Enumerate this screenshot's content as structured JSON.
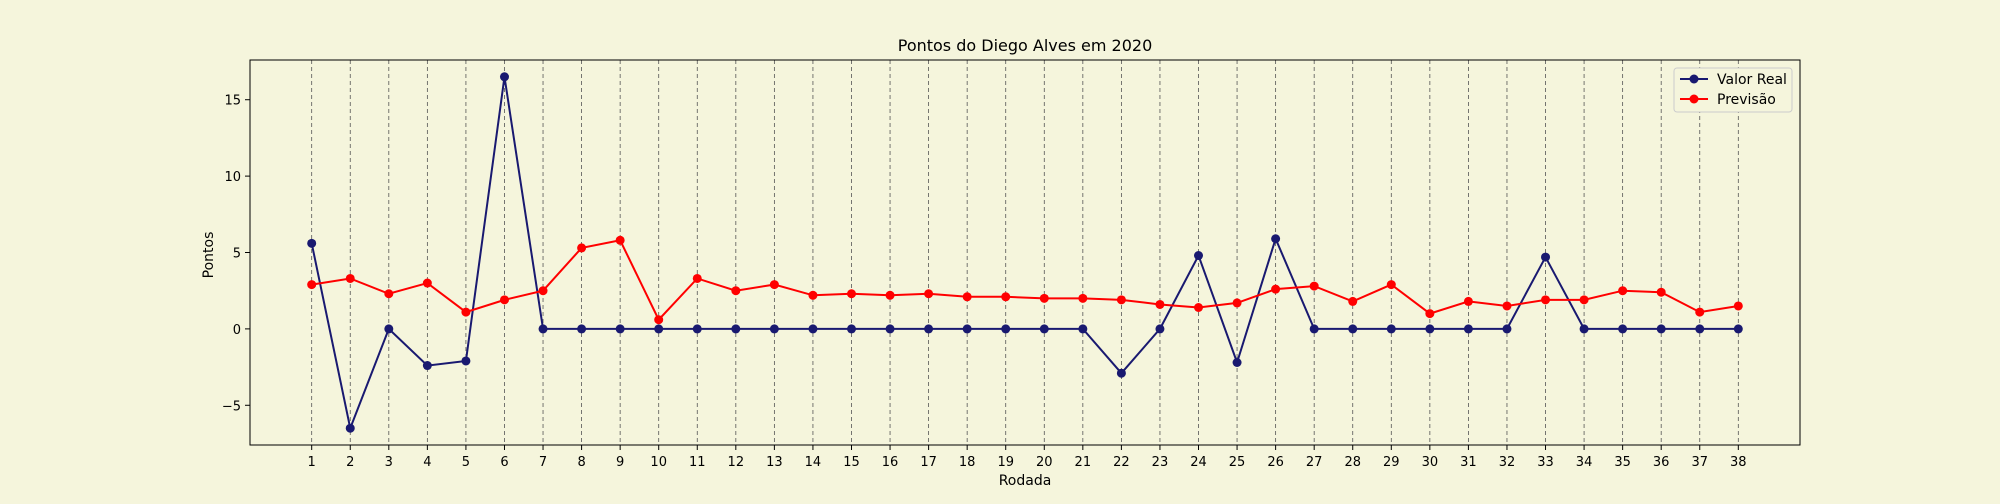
{
  "chart_data": {
    "type": "line",
    "title": "Pontos do Diego Alves em 2020",
    "xlabel": "Rodada",
    "ylabel": "Pontos",
    "x": [
      1,
      2,
      3,
      4,
      5,
      6,
      7,
      8,
      9,
      10,
      11,
      12,
      13,
      14,
      15,
      16,
      17,
      18,
      19,
      20,
      21,
      22,
      23,
      24,
      25,
      26,
      27,
      28,
      29,
      30,
      31,
      32,
      33,
      34,
      35,
      36,
      37,
      38
    ],
    "xlim": [
      -0.6,
      39.6
    ],
    "ylim": [
      -7.6,
      17.6
    ],
    "yticks": [
      -5,
      0,
      5,
      10,
      15
    ],
    "ytick_labels": [
      "−5",
      "0",
      "5",
      "10",
      "15"
    ],
    "grid": "vertical dashed lines at each x tick",
    "legend_position": "top-right",
    "series": [
      {
        "name": "Valor Real",
        "color": "#191970",
        "values": [
          5.6,
          -6.5,
          0,
          -2.4,
          -2.1,
          16.5,
          0,
          0,
          0,
          0,
          0,
          0,
          0,
          0,
          0,
          0,
          0,
          0,
          0,
          0,
          0,
          -2.9,
          0,
          4.8,
          -2.2,
          5.9,
          0,
          0,
          0,
          0,
          0,
          0,
          4.7,
          0,
          0,
          0,
          0,
          0
        ]
      },
      {
        "name": "Previsão",
        "color": "#ff0000",
        "values": [
          2.9,
          3.3,
          2.3,
          3.0,
          1.1,
          1.9,
          2.5,
          5.3,
          5.8,
          0.6,
          3.3,
          2.5,
          2.9,
          2.2,
          2.3,
          2.2,
          2.3,
          2.1,
          2.1,
          2.0,
          2.0,
          1.9,
          1.6,
          1.4,
          1.7,
          2.6,
          2.8,
          1.8,
          2.9,
          1.0,
          1.8,
          1.5,
          1.9,
          1.9,
          2.5,
          2.4,
          1.1,
          1.5
        ]
      }
    ]
  }
}
